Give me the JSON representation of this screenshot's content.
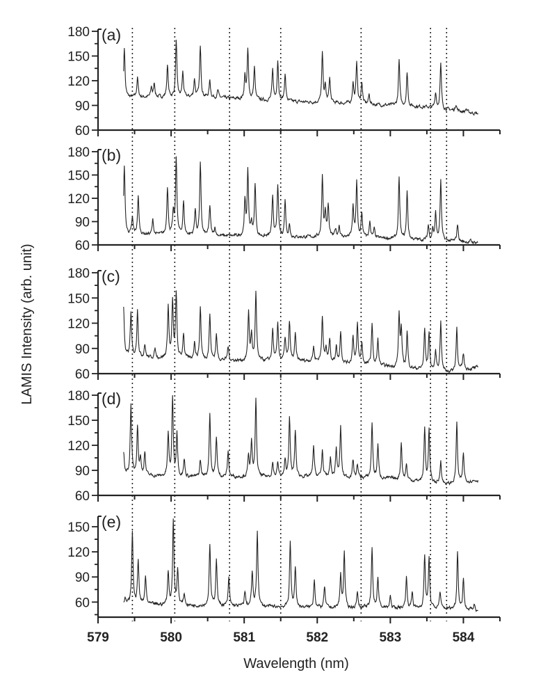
{
  "chart_data": {
    "type": "line",
    "xlabel": "Wavelength (nm)",
    "ylabel": "LAMIS Intensity (arb. unit)",
    "xlim": [
      579,
      584.5
    ],
    "x_ticks": [
      "579",
      "580",
      "581",
      "582",
      "583",
      "584"
    ],
    "grid": false,
    "line_color": "#222222",
    "reference_lines_dotted": [
      579.47,
      580.05,
      580.8,
      581.5,
      582.6,
      583.55,
      583.77
    ],
    "panels": [
      {
        "label": "(a)",
        "ylim": [
          60,
          180
        ],
        "y_ticks": [
          "60",
          "90",
          "120",
          "150",
          "180"
        ],
        "baseline": [
          [
            579.35,
            100
          ],
          [
            580.5,
            100
          ],
          [
            581.5,
            95
          ],
          [
            582.5,
            92
          ],
          [
            583.5,
            88
          ],
          [
            584.2,
            80
          ]
        ],
        "peaks": [
          [
            579.36,
            160
          ],
          [
            579.54,
            124
          ],
          [
            579.73,
            112
          ],
          [
            579.77,
            117
          ],
          [
            579.95,
            138
          ],
          [
            580.07,
            168
          ],
          [
            580.16,
            130
          ],
          [
            580.32,
            122
          ],
          [
            580.4,
            162
          ],
          [
            580.53,
            120
          ],
          [
            580.64,
            108
          ],
          [
            581.01,
            125
          ],
          [
            581.05,
            156
          ],
          [
            581.14,
            136
          ],
          [
            581.39,
            132
          ],
          [
            581.46,
            145
          ],
          [
            581.56,
            128
          ],
          [
            582.07,
            152
          ],
          [
            582.11,
            112
          ],
          [
            582.17,
            123
          ],
          [
            582.49,
            117
          ],
          [
            582.54,
            143
          ],
          [
            582.61,
            118
          ],
          [
            582.71,
            103
          ],
          [
            583.12,
            145
          ],
          [
            583.23,
            130
          ],
          [
            583.62,
            106
          ],
          [
            583.69,
            140
          ],
          [
            583.9,
            92
          ],
          [
            584.04,
            86
          ]
        ]
      },
      {
        "label": "(b)",
        "ylim": [
          60,
          180
        ],
        "y_ticks": [
          "60",
          "90",
          "120",
          "150",
          "180"
        ],
        "baseline": [
          [
            579.35,
            74
          ],
          [
            580.5,
            72
          ],
          [
            581.5,
            70
          ],
          [
            582.5,
            70
          ],
          [
            583.5,
            66
          ],
          [
            584.2,
            63
          ]
        ],
        "peaks": [
          [
            579.36,
            162
          ],
          [
            579.47,
            94
          ],
          [
            579.55,
            122
          ],
          [
            579.75,
            92
          ],
          [
            579.95,
            135
          ],
          [
            580.03,
            100
          ],
          [
            580.07,
            172
          ],
          [
            580.17,
            115
          ],
          [
            580.33,
            105
          ],
          [
            580.4,
            164
          ],
          [
            580.53,
            110
          ],
          [
            580.6,
            82
          ],
          [
            581.01,
            115
          ],
          [
            581.05,
            153
          ],
          [
            581.1,
            88
          ],
          [
            581.15,
            138
          ],
          [
            581.39,
            122
          ],
          [
            581.46,
            137
          ],
          [
            581.56,
            117
          ],
          [
            581.62,
            85
          ],
          [
            582.07,
            148
          ],
          [
            582.11,
            100
          ],
          [
            582.15,
            110
          ],
          [
            582.25,
            80
          ],
          [
            582.3,
            85
          ],
          [
            582.49,
            108
          ],
          [
            582.54,
            140
          ],
          [
            582.61,
            100
          ],
          [
            582.72,
            90
          ],
          [
            582.78,
            80
          ],
          [
            583.12,
            145
          ],
          [
            583.23,
            128
          ],
          [
            583.52,
            85
          ],
          [
            583.58,
            80
          ],
          [
            583.62,
            100
          ],
          [
            583.69,
            142
          ],
          [
            583.92,
            87
          ],
          [
            584.1,
            65
          ]
        ]
      },
      {
        "label": "(c)",
        "ylim": [
          60,
          180
        ],
        "y_ticks": [
          "60",
          "90",
          "120",
          "150",
          "180"
        ],
        "baseline": [
          [
            579.35,
            80
          ],
          [
            580,
            78
          ],
          [
            581,
            75
          ],
          [
            582,
            75
          ],
          [
            583,
            68
          ],
          [
            583.8,
            62
          ],
          [
            584.2,
            67
          ]
        ],
        "peaks": [
          [
            579.35,
            139
          ],
          [
            579.45,
            132
          ],
          [
            579.54,
            136
          ],
          [
            579.64,
            95
          ],
          [
            579.78,
            89
          ],
          [
            579.96,
            140
          ],
          [
            580.02,
            145
          ],
          [
            580.07,
            154
          ],
          [
            580.17,
            108
          ],
          [
            580.32,
            98
          ],
          [
            580.4,
            139
          ],
          [
            580.53,
            130
          ],
          [
            580.62,
            106
          ],
          [
            580.78,
            92
          ],
          [
            581.06,
            133
          ],
          [
            581.1,
            105
          ],
          [
            581.16,
            156
          ],
          [
            581.39,
            112
          ],
          [
            581.46,
            119
          ],
          [
            581.56,
            102
          ],
          [
            581.62,
            121
          ],
          [
            581.7,
            106
          ],
          [
            581.95,
            92
          ],
          [
            582.07,
            129
          ],
          [
            582.12,
            90
          ],
          [
            582.17,
            101
          ],
          [
            582.26,
            93
          ],
          [
            582.32,
            110
          ],
          [
            582.49,
            105
          ],
          [
            582.55,
            118
          ],
          [
            582.61,
            96
          ],
          [
            582.75,
            119
          ],
          [
            582.83,
            100
          ],
          [
            583.12,
            128
          ],
          [
            583.15,
            111
          ],
          [
            583.23,
            109
          ],
          [
            583.47,
            112
          ],
          [
            583.53,
            109
          ],
          [
            583.62,
            86
          ],
          [
            583.69,
            122
          ],
          [
            583.91,
            115
          ],
          [
            584.0,
            84
          ]
        ]
      },
      {
        "label": "(d)",
        "ylim": [
          60,
          180
        ],
        "y_ticks": [
          "60",
          "90",
          "120",
          "150",
          "180"
        ],
        "baseline": [
          [
            579.35,
            85
          ],
          [
            580,
            82
          ],
          [
            581,
            82
          ],
          [
            582,
            82
          ],
          [
            583,
            80
          ],
          [
            583.8,
            73
          ],
          [
            584.2,
            78
          ]
        ],
        "peaks": [
          [
            579.35,
            112
          ],
          [
            579.45,
            169
          ],
          [
            579.54,
            143
          ],
          [
            579.58,
            103
          ],
          [
            579.64,
            112
          ],
          [
            579.96,
            133
          ],
          [
            580.02,
            178
          ],
          [
            580.08,
            136
          ],
          [
            580.18,
            103
          ],
          [
            580.4,
            102
          ],
          [
            580.53,
            158
          ],
          [
            580.62,
            130
          ],
          [
            580.78,
            112
          ],
          [
            581.06,
            107
          ],
          [
            581.1,
            122
          ],
          [
            581.16,
            174
          ],
          [
            581.39,
            99
          ],
          [
            581.46,
            99
          ],
          [
            581.56,
            101
          ],
          [
            581.62,
            154
          ],
          [
            581.7,
            137
          ],
          [
            581.95,
            120
          ],
          [
            582.07,
            114
          ],
          [
            582.18,
            105
          ],
          [
            582.26,
            116
          ],
          [
            582.32,
            142
          ],
          [
            582.49,
            102
          ],
          [
            582.55,
            97
          ],
          [
            582.75,
            147
          ],
          [
            582.83,
            120
          ],
          [
            583.15,
            123
          ],
          [
            583.22,
            97
          ],
          [
            583.47,
            140
          ],
          [
            583.53,
            138
          ],
          [
            583.69,
            102
          ],
          [
            583.91,
            147
          ],
          [
            584.0,
            110
          ]
        ]
      },
      {
        "label": "(e)",
        "ylim": [
          42,
          160
        ],
        "y_ticks": [
          "60",
          "90",
          "120",
          "150"
        ],
        "baseline": [
          [
            579.35,
            58
          ],
          [
            580,
            56
          ],
          [
            581,
            55
          ],
          [
            582,
            53
          ],
          [
            583,
            53
          ],
          [
            583.8,
            52
          ],
          [
            584.2,
            50
          ]
        ],
        "peaks": [
          [
            579.37,
            65
          ],
          [
            579.47,
            144
          ],
          [
            579.55,
            110
          ],
          [
            579.65,
            90
          ],
          [
            579.96,
            96
          ],
          [
            580.03,
            158
          ],
          [
            580.09,
            98
          ],
          [
            580.18,
            70
          ],
          [
            580.53,
            128
          ],
          [
            580.62,
            112
          ],
          [
            580.79,
            88
          ],
          [
            581.01,
            72
          ],
          [
            581.11,
            95
          ],
          [
            581.18,
            145
          ],
          [
            581.63,
            132
          ],
          [
            581.7,
            102
          ],
          [
            581.96,
            88
          ],
          [
            582.1,
            78
          ],
          [
            582.32,
            92
          ],
          [
            582.37,
            118
          ],
          [
            582.55,
            72
          ],
          [
            582.75,
            125
          ],
          [
            582.83,
            90
          ],
          [
            583.0,
            66
          ],
          [
            583.22,
            90
          ],
          [
            583.3,
            72
          ],
          [
            583.47,
            115
          ],
          [
            583.53,
            112
          ],
          [
            583.68,
            72
          ],
          [
            583.92,
            120
          ],
          [
            584.0,
            88
          ],
          [
            584.15,
            58
          ]
        ]
      }
    ]
  }
}
